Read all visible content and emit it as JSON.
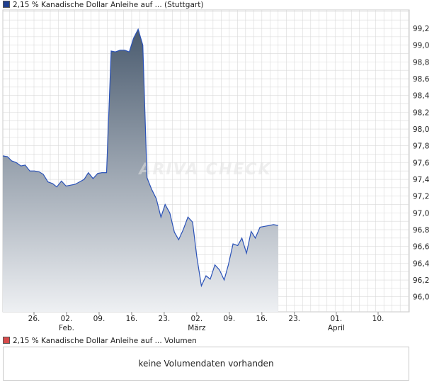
{
  "colors": {
    "price_swatch": "#1f3f8f",
    "volume_swatch": "#d84b4b",
    "line": "#2a52b8",
    "fill_top": "#4a5b6f",
    "fill_bottom": "#eef0f3",
    "grid": "#d9d9d9"
  },
  "legend": {
    "price": "2,15 % Kanadische Dollar Anleihe auf ... (Stuttgart)",
    "volume": "2,15 % Kanadische Dollar Anleihe auf ... Volumen"
  },
  "watermark": "ARIVA CHECK",
  "volume_message": "keine Volumendaten vorhanden",
  "chart_data": {
    "type": "area",
    "y_ticks": [
      "96,0",
      "96,2",
      "96,4",
      "96,6",
      "96,8",
      "97,0",
      "97,2",
      "97,4",
      "97,6",
      "97,8",
      "98,0",
      "98,2",
      "98,4",
      "98,6",
      "98,8",
      "99,0",
      "99,2"
    ],
    "ylim": [
      95.82,
      99.42
    ],
    "x_ticks": [
      {
        "label": "26.",
        "month": "",
        "day": 26
      },
      {
        "label": "02.",
        "month": "Feb.",
        "day": 33
      },
      {
        "label": "09.",
        "month": "",
        "day": 40
      },
      {
        "label": "16.",
        "month": "",
        "day": 47
      },
      {
        "label": "23.",
        "month": "",
        "day": 54
      },
      {
        "label": "02.",
        "month": "März",
        "day": 61
      },
      {
        "label": "09.",
        "month": "",
        "day": 68
      },
      {
        "label": "16.",
        "month": "",
        "day": 75
      },
      {
        "label": "23.",
        "month": "",
        "day": 82
      },
      {
        "label": "01.",
        "month": "April",
        "day": 91
      },
      {
        "label": "10.",
        "month": "",
        "day": 100
      }
    ],
    "xlim": [
      19.3,
      106.7
    ],
    "series": [
      {
        "points": [
          [
            19.3,
            97.68
          ],
          [
            20.3,
            97.67
          ],
          [
            21.2,
            97.62
          ],
          [
            22.2,
            97.6
          ],
          [
            23.2,
            97.56
          ],
          [
            24.1,
            97.57
          ],
          [
            25.1,
            97.5
          ],
          [
            26.1,
            97.5
          ],
          [
            27.1,
            97.49
          ],
          [
            28.0,
            97.46
          ],
          [
            29.0,
            97.37
          ],
          [
            30.0,
            97.35
          ],
          [
            30.9,
            97.31
          ],
          [
            31.9,
            97.38
          ],
          [
            32.9,
            97.32
          ],
          [
            33.8,
            97.33
          ],
          [
            34.8,
            97.34
          ],
          [
            35.8,
            97.37
          ],
          [
            36.8,
            97.4
          ],
          [
            37.7,
            97.48
          ],
          [
            38.7,
            97.41
          ],
          [
            39.7,
            97.47
          ],
          [
            40.6,
            97.48
          ],
          [
            41.6,
            97.48
          ],
          [
            42.6,
            98.93
          ],
          [
            43.5,
            98.92
          ],
          [
            44.5,
            98.94
          ],
          [
            45.5,
            98.94
          ],
          [
            46.5,
            98.92
          ],
          [
            47.4,
            99.08
          ],
          [
            48.4,
            99.19
          ],
          [
            49.4,
            99.0
          ],
          [
            50.3,
            97.42
          ],
          [
            51.3,
            97.28
          ],
          [
            52.3,
            97.17
          ],
          [
            53.3,
            96.95
          ],
          [
            54.2,
            97.1
          ],
          [
            55.2,
            97.0
          ],
          [
            56.2,
            96.77
          ],
          [
            57.1,
            96.68
          ],
          [
            58.1,
            96.8
          ],
          [
            59.1,
            96.95
          ],
          [
            60.1,
            96.89
          ],
          [
            61.0,
            96.48
          ],
          [
            62.0,
            96.13
          ],
          [
            63.0,
            96.25
          ],
          [
            63.9,
            96.21
          ],
          [
            64.9,
            96.38
          ],
          [
            65.9,
            96.32
          ],
          [
            66.9,
            96.2
          ],
          [
            67.8,
            96.38
          ],
          [
            68.8,
            96.63
          ],
          [
            69.8,
            96.61
          ],
          [
            70.7,
            96.7
          ],
          [
            71.7,
            96.52
          ],
          [
            72.7,
            96.78
          ],
          [
            73.6,
            96.7
          ],
          [
            74.6,
            96.83
          ],
          [
            75.6,
            96.84
          ],
          [
            76.6,
            96.85
          ],
          [
            77.5,
            96.86
          ],
          [
            78.5,
            96.85
          ]
        ]
      }
    ]
  }
}
